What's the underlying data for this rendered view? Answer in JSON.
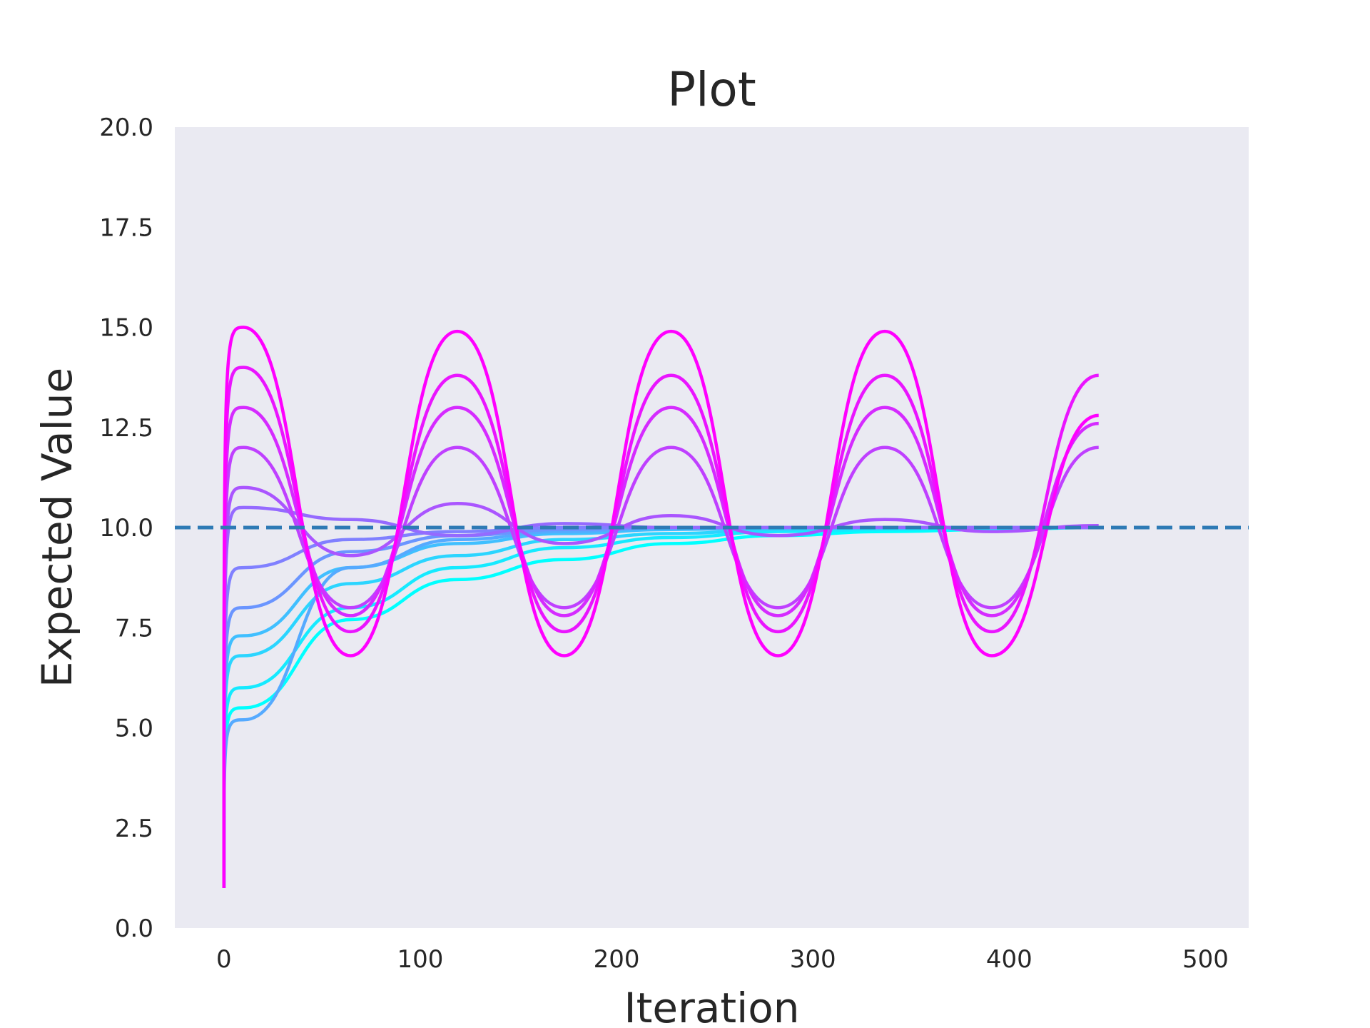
{
  "chart_data": {
    "type": "line",
    "title": "Plot",
    "xlabel": "Iteration",
    "ylabel": "Expected Value",
    "xlim": [
      -25,
      522
    ],
    "ylim": [
      0,
      20
    ],
    "x_ticks": [
      "0",
      "100",
      "200",
      "300",
      "400",
      "500"
    ],
    "y_ticks": [
      "0.0",
      "2.5",
      "5.0",
      "7.5",
      "10.0",
      "12.5",
      "15.0",
      "17.5",
      "20.0"
    ],
    "grid": false,
    "legend": "none",
    "background": "#eaeaf2",
    "colormap": [
      "#00ffff",
      "#ff00ff"
    ],
    "reference_line": {
      "y": 10.0,
      "style": "dashed",
      "color": "#2e7ab5"
    },
    "x_range": [
      0,
      500
    ],
    "start_value": 1.0,
    "series": [
      {
        "values": [
          1.0,
          5.5,
          7.7,
          8.7,
          9.2,
          9.6,
          9.8,
          9.9,
          9.95,
          10.0
        ]
      },
      {
        "values": [
          1.0,
          6.0,
          8.0,
          9.0,
          9.5,
          9.75,
          9.9,
          9.95,
          10.0,
          10.0
        ]
      },
      {
        "values": [
          1.0,
          6.8,
          8.6,
          9.3,
          9.7,
          9.85,
          9.95,
          10.0,
          10.0,
          10.0
        ]
      },
      {
        "values": [
          1.0,
          7.3,
          9.0,
          9.6,
          9.85,
          9.95,
          10.0,
          10.0,
          10.0,
          10.0
        ]
      },
      {
        "values": [
          1.0,
          5.2,
          9.0,
          9.7,
          9.9,
          10.0,
          10.0,
          10.0,
          10.0,
          10.0
        ]
      },
      {
        "values": [
          1.0,
          8.0,
          9.4,
          9.8,
          9.95,
          10.0,
          10.0,
          10.0,
          10.0,
          10.0
        ]
      },
      {
        "values": [
          1.0,
          9.0,
          9.7,
          9.9,
          10.0,
          10.0,
          10.0,
          10.0,
          10.0,
          10.0
        ]
      },
      {
        "values": [
          1.0,
          10.5,
          10.2,
          9.8,
          10.1,
          10.0,
          10.0,
          10.0,
          10.0,
          10.0
        ]
      },
      {
        "values": [
          1.0,
          11.0,
          9.3,
          10.6,
          9.6,
          10.3,
          9.8,
          10.2,
          9.9,
          10.05
        ]
      },
      {
        "values": [
          1.0,
          12.0,
          8.0,
          12.0,
          8.0,
          12.0,
          8.0,
          12.0,
          8.0,
          12.0
        ]
      },
      {
        "values": [
          1.0,
          13.0,
          7.8,
          13.0,
          7.8,
          13.0,
          7.8,
          13.0,
          7.8,
          12.6
        ]
      },
      {
        "values": [
          1.0,
          14.0,
          7.4,
          13.8,
          7.4,
          13.8,
          7.4,
          13.8,
          7.4,
          13.8
        ]
      },
      {
        "values": [
          1.0,
          15.0,
          6.8,
          14.9,
          6.8,
          14.9,
          6.8,
          14.9,
          6.8,
          12.8
        ]
      }
    ]
  }
}
